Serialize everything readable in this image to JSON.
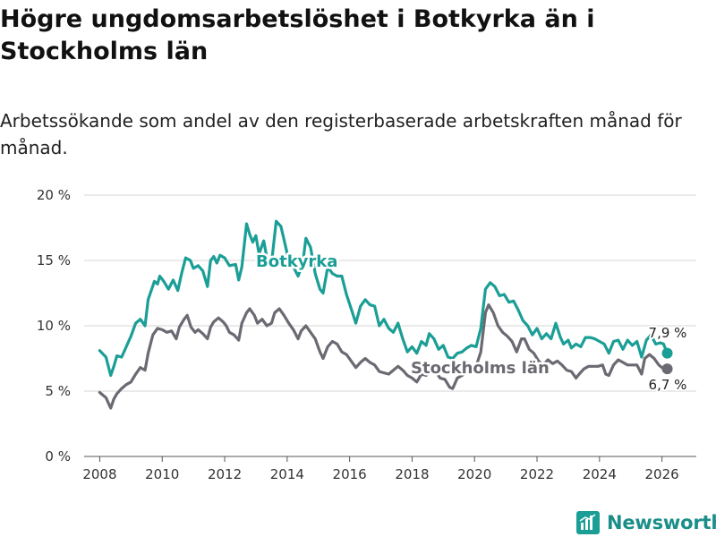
{
  "title": "Högre ungdomsarbetslöshet i Botkyrka än i Stockholms län",
  "subtitle": "Arbetssökande som andel av den registerbaserade arbetskraften månad för månad.",
  "brand": {
    "name": "Newsworthy",
    "color": "#1b9e96"
  },
  "chart_data": {
    "type": "line",
    "title": "Högre ungdomsarbetslöshet i Botkyrka än i Stockholms län",
    "xlabel": "",
    "ylabel": "",
    "xlim": [
      2007.5,
      2027.1
    ],
    "ylim": [
      0,
      20
    ],
    "y_ticks": [
      0,
      5,
      10,
      15,
      20
    ],
    "y_tick_labels": [
      "0 %",
      "5 %",
      "10 %",
      "15 %",
      "20 %"
    ],
    "x_ticks": [
      2008,
      2010,
      2012,
      2014,
      2016,
      2018,
      2020,
      2022,
      2024,
      2026
    ],
    "x_tick_labels": [
      "2008",
      "2010",
      "2012",
      "2014",
      "2016",
      "2018",
      "2020",
      "2022",
      "2024",
      "2026"
    ],
    "grid": true,
    "series": [
      {
        "name": "Botkyrka",
        "color": "#1b9e96",
        "end_label": "7,9 %",
        "points": [
          [
            2008.0,
            8.1
          ],
          [
            2008.2,
            7.6
          ],
          [
            2008.35,
            6.2
          ],
          [
            2008.45,
            6.9
          ],
          [
            2008.55,
            7.7
          ],
          [
            2008.7,
            7.6
          ],
          [
            2008.85,
            8.4
          ],
          [
            2009.0,
            9.2
          ],
          [
            2009.15,
            10.2
          ],
          [
            2009.3,
            10.5
          ],
          [
            2009.45,
            10.0
          ],
          [
            2009.55,
            12.0
          ],
          [
            2009.75,
            13.4
          ],
          [
            2009.85,
            13.2
          ],
          [
            2009.92,
            13.8
          ],
          [
            2010.05,
            13.4
          ],
          [
            2010.2,
            12.8
          ],
          [
            2010.35,
            13.5
          ],
          [
            2010.5,
            12.7
          ],
          [
            2010.62,
            14.0
          ],
          [
            2010.75,
            15.2
          ],
          [
            2010.9,
            15.0
          ],
          [
            2011.0,
            14.4
          ],
          [
            2011.15,
            14.6
          ],
          [
            2011.3,
            14.2
          ],
          [
            2011.45,
            13.0
          ],
          [
            2011.55,
            15.0
          ],
          [
            2011.65,
            15.3
          ],
          [
            2011.75,
            14.8
          ],
          [
            2011.85,
            15.4
          ],
          [
            2012.0,
            15.2
          ],
          [
            2012.15,
            14.6
          ],
          [
            2012.35,
            14.7
          ],
          [
            2012.45,
            13.5
          ],
          [
            2012.55,
            14.5
          ],
          [
            2012.7,
            17.8
          ],
          [
            2012.8,
            17.0
          ],
          [
            2012.9,
            16.4
          ],
          [
            2013.0,
            16.9
          ],
          [
            2013.1,
            15.5
          ],
          [
            2013.25,
            16.5
          ],
          [
            2013.35,
            15.2
          ],
          [
            2013.5,
            14.8
          ],
          [
            2013.65,
            18.0
          ],
          [
            2013.8,
            17.6
          ],
          [
            2013.92,
            16.4
          ],
          [
            2014.05,
            15.0
          ],
          [
            2014.2,
            14.5
          ],
          [
            2014.35,
            13.8
          ],
          [
            2014.5,
            14.8
          ],
          [
            2014.6,
            16.7
          ],
          [
            2014.75,
            16.0
          ],
          [
            2014.9,
            14.0
          ],
          [
            2015.05,
            12.8
          ],
          [
            2015.15,
            12.5
          ],
          [
            2015.3,
            14.5
          ],
          [
            2015.45,
            14.0
          ],
          [
            2015.6,
            13.8
          ],
          [
            2015.75,
            13.8
          ],
          [
            2015.9,
            12.4
          ],
          [
            2016.05,
            11.3
          ],
          [
            2016.2,
            10.2
          ],
          [
            2016.35,
            11.5
          ],
          [
            2016.5,
            12.0
          ],
          [
            2016.65,
            11.6
          ],
          [
            2016.8,
            11.5
          ],
          [
            2016.95,
            10.0
          ],
          [
            2017.1,
            10.5
          ],
          [
            2017.25,
            9.8
          ],
          [
            2017.4,
            9.5
          ],
          [
            2017.55,
            10.2
          ],
          [
            2017.7,
            9.0
          ],
          [
            2017.85,
            8.0
          ],
          [
            2018.0,
            8.4
          ],
          [
            2018.15,
            7.9
          ],
          [
            2018.3,
            8.8
          ],
          [
            2018.45,
            8.5
          ],
          [
            2018.55,
            9.4
          ],
          [
            2018.7,
            9.0
          ],
          [
            2018.85,
            8.2
          ],
          [
            2019.0,
            8.5
          ],
          [
            2019.15,
            7.6
          ],
          [
            2019.3,
            7.5
          ],
          [
            2019.45,
            7.9
          ],
          [
            2019.6,
            8.0
          ],
          [
            2019.75,
            8.3
          ],
          [
            2019.9,
            8.5
          ],
          [
            2020.05,
            8.4
          ],
          [
            2020.2,
            9.8
          ],
          [
            2020.35,
            12.8
          ],
          [
            2020.5,
            13.3
          ],
          [
            2020.65,
            13.0
          ],
          [
            2020.8,
            12.3
          ],
          [
            2020.95,
            12.4
          ],
          [
            2021.1,
            11.8
          ],
          [
            2021.25,
            11.9
          ],
          [
            2021.4,
            11.2
          ],
          [
            2021.55,
            10.4
          ],
          [
            2021.7,
            10.0
          ],
          [
            2021.85,
            9.3
          ],
          [
            2022.0,
            9.8
          ],
          [
            2022.15,
            9.0
          ],
          [
            2022.3,
            9.4
          ],
          [
            2022.45,
            9.0
          ],
          [
            2022.6,
            10.2
          ],
          [
            2022.75,
            9.1
          ],
          [
            2022.85,
            8.6
          ],
          [
            2023.0,
            8.9
          ],
          [
            2023.1,
            8.3
          ],
          [
            2023.25,
            8.6
          ],
          [
            2023.4,
            8.4
          ],
          [
            2023.55,
            9.1
          ],
          [
            2023.7,
            9.1
          ],
          [
            2023.85,
            9.0
          ],
          [
            2024.0,
            8.8
          ],
          [
            2024.15,
            8.6
          ],
          [
            2024.3,
            7.9
          ],
          [
            2024.45,
            8.8
          ],
          [
            2024.6,
            8.9
          ],
          [
            2024.75,
            8.2
          ],
          [
            2024.9,
            8.9
          ],
          [
            2025.05,
            8.5
          ],
          [
            2025.2,
            8.8
          ],
          [
            2025.35,
            7.6
          ],
          [
            2025.5,
            8.9
          ],
          [
            2025.65,
            9.3
          ],
          [
            2025.8,
            8.6
          ],
          [
            2025.95,
            8.7
          ],
          [
            2026.05,
            8.6
          ],
          [
            2026.17,
            7.9
          ]
        ]
      },
      {
        "name": "Stockholms län",
        "color": "#6a6a72",
        "end_label": "6,7 %",
        "points": [
          [
            2008.0,
            4.9
          ],
          [
            2008.2,
            4.5
          ],
          [
            2008.35,
            3.7
          ],
          [
            2008.45,
            4.4
          ],
          [
            2008.55,
            4.8
          ],
          [
            2008.7,
            5.2
          ],
          [
            2008.85,
            5.5
          ],
          [
            2009.0,
            5.7
          ],
          [
            2009.15,
            6.3
          ],
          [
            2009.3,
            6.8
          ],
          [
            2009.45,
            6.6
          ],
          [
            2009.55,
            7.9
          ],
          [
            2009.7,
            9.3
          ],
          [
            2009.85,
            9.8
          ],
          [
            2010.0,
            9.7
          ],
          [
            2010.15,
            9.5
          ],
          [
            2010.3,
            9.6
          ],
          [
            2010.45,
            9.0
          ],
          [
            2010.55,
            9.9
          ],
          [
            2010.7,
            10.5
          ],
          [
            2010.8,
            10.8
          ],
          [
            2010.92,
            9.9
          ],
          [
            2011.05,
            9.5
          ],
          [
            2011.15,
            9.7
          ],
          [
            2011.3,
            9.4
          ],
          [
            2011.45,
            9.0
          ],
          [
            2011.55,
            9.9
          ],
          [
            2011.65,
            10.3
          ],
          [
            2011.8,
            10.6
          ],
          [
            2011.95,
            10.3
          ],
          [
            2012.05,
            10.0
          ],
          [
            2012.15,
            9.5
          ],
          [
            2012.3,
            9.3
          ],
          [
            2012.45,
            8.9
          ],
          [
            2012.55,
            10.2
          ],
          [
            2012.7,
            11.0
          ],
          [
            2012.8,
            11.3
          ],
          [
            2012.95,
            10.8
          ],
          [
            2013.05,
            10.2
          ],
          [
            2013.2,
            10.5
          ],
          [
            2013.35,
            10.0
          ],
          [
            2013.5,
            10.2
          ],
          [
            2013.6,
            11.0
          ],
          [
            2013.75,
            11.3
          ],
          [
            2013.9,
            10.8
          ],
          [
            2014.05,
            10.2
          ],
          [
            2014.2,
            9.7
          ],
          [
            2014.35,
            9.0
          ],
          [
            2014.45,
            9.6
          ],
          [
            2014.6,
            10.0
          ],
          [
            2014.75,
            9.5
          ],
          [
            2014.9,
            9.0
          ],
          [
            2015.05,
            8.0
          ],
          [
            2015.15,
            7.5
          ],
          [
            2015.3,
            8.4
          ],
          [
            2015.45,
            8.8
          ],
          [
            2015.6,
            8.6
          ],
          [
            2015.75,
            8.0
          ],
          [
            2015.9,
            7.8
          ],
          [
            2016.05,
            7.3
          ],
          [
            2016.2,
            6.8
          ],
          [
            2016.35,
            7.2
          ],
          [
            2016.5,
            7.5
          ],
          [
            2016.65,
            7.2
          ],
          [
            2016.8,
            7.0
          ],
          [
            2016.95,
            6.5
          ],
          [
            2017.1,
            6.4
          ],
          [
            2017.25,
            6.3
          ],
          [
            2017.4,
            6.6
          ],
          [
            2017.55,
            6.9
          ],
          [
            2017.7,
            6.6
          ],
          [
            2017.85,
            6.2
          ],
          [
            2018.0,
            6.0
          ],
          [
            2018.15,
            5.7
          ],
          [
            2018.3,
            6.3
          ],
          [
            2018.45,
            6.2
          ],
          [
            2018.6,
            6.6
          ],
          [
            2018.75,
            6.5
          ],
          [
            2018.9,
            6.0
          ],
          [
            2019.05,
            5.9
          ],
          [
            2019.2,
            5.3
          ],
          [
            2019.3,
            5.2
          ],
          [
            2019.45,
            6.0
          ],
          [
            2019.6,
            6.2
          ],
          [
            2019.75,
            6.5
          ],
          [
            2019.9,
            6.8
          ],
          [
            2020.05,
            6.9
          ],
          [
            2020.2,
            8.0
          ],
          [
            2020.35,
            11.0
          ],
          [
            2020.45,
            11.6
          ],
          [
            2020.6,
            11.0
          ],
          [
            2020.75,
            10.0
          ],
          [
            2020.9,
            9.5
          ],
          [
            2021.05,
            9.2
          ],
          [
            2021.2,
            8.8
          ],
          [
            2021.35,
            8.0
          ],
          [
            2021.5,
            9.0
          ],
          [
            2021.6,
            9.0
          ],
          [
            2021.75,
            8.2
          ],
          [
            2021.9,
            7.9
          ],
          [
            2022.05,
            7.3
          ],
          [
            2022.2,
            7.0
          ],
          [
            2022.35,
            7.4
          ],
          [
            2022.5,
            7.1
          ],
          [
            2022.65,
            7.3
          ],
          [
            2022.8,
            7.0
          ],
          [
            2022.95,
            6.6
          ],
          [
            2023.1,
            6.5
          ],
          [
            2023.25,
            6.0
          ],
          [
            2023.35,
            6.3
          ],
          [
            2023.5,
            6.7
          ],
          [
            2023.65,
            6.9
          ],
          [
            2023.8,
            6.9
          ],
          [
            2023.95,
            6.9
          ],
          [
            2024.1,
            7.0
          ],
          [
            2024.2,
            6.3
          ],
          [
            2024.3,
            6.2
          ],
          [
            2024.45,
            7.0
          ],
          [
            2024.6,
            7.4
          ],
          [
            2024.75,
            7.2
          ],
          [
            2024.9,
            7.0
          ],
          [
            2025.05,
            7.0
          ],
          [
            2025.2,
            7.0
          ],
          [
            2025.35,
            6.3
          ],
          [
            2025.45,
            7.5
          ],
          [
            2025.6,
            7.8
          ],
          [
            2025.75,
            7.5
          ],
          [
            2025.9,
            7.0
          ],
          [
            2026.05,
            6.7
          ],
          [
            2026.17,
            6.7
          ]
        ]
      }
    ]
  }
}
